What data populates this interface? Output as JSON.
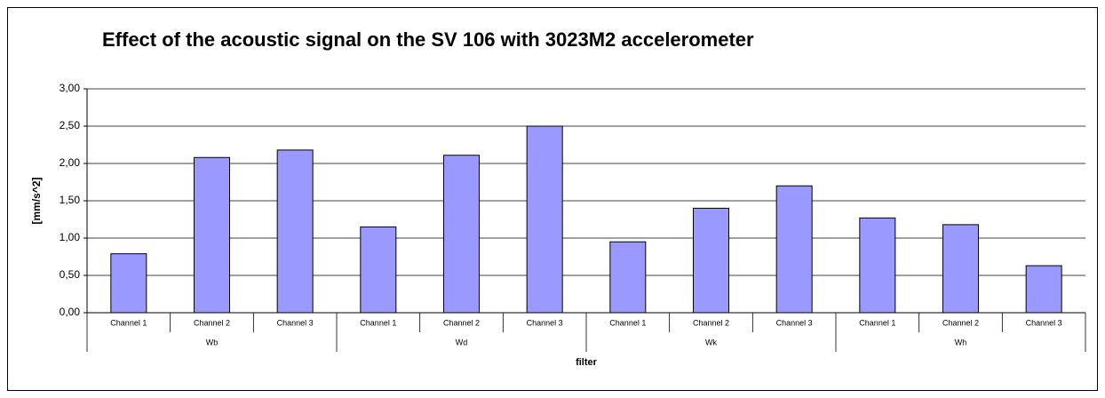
{
  "chart_data": {
    "type": "bar",
    "title": "Effect of the acoustic signal on the SV 106 with 3023M2  accelerometer",
    "y_label": "[mm/s^2]",
    "x_label": "filter",
    "categories": [
      "Channel 1",
      "Channel 2",
      "Channel 3",
      "Channel 1",
      "Channel 2",
      "Channel 3",
      "Channel 1",
      "Channel 2",
      "Channel 3",
      "Channel 1",
      "Channel 2",
      "Channel 3"
    ],
    "group_labels": [
      "Wb",
      "Wd",
      "Wk",
      "Wh"
    ],
    "values": [
      0.79,
      2.08,
      2.18,
      1.15,
      2.11,
      2.5,
      0.95,
      1.4,
      1.7,
      1.27,
      1.18,
      0.63
    ],
    "color": "#9999ff",
    "ylim": [
      0,
      3
    ],
    "yticks": [
      {
        "value": 0,
        "label": "0,00"
      },
      {
        "value": 0.5,
        "label": "0,50"
      },
      {
        "value": 1,
        "label": "1,00"
      },
      {
        "value": 1.5,
        "label": "1,50"
      },
      {
        "value": 2,
        "label": "2,00"
      },
      {
        "value": 2.5,
        "label": "2,50"
      },
      {
        "value": 3,
        "label": "3,00"
      }
    ],
    "grid": true
  }
}
